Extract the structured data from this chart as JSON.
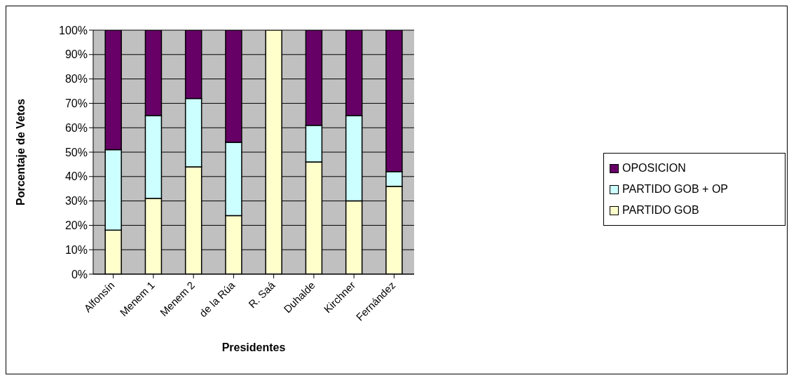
{
  "chart_data": {
    "type": "bar",
    "stacked": true,
    "xlabel": "Presidentes",
    "ylabel": "Porcentaje de Vetos",
    "categories": [
      "Alfonsín",
      "Menem 1",
      "Menem 2",
      "de la Rúa",
      "R. Saá",
      "Duhalde",
      "Kirchner",
      "Fernández"
    ],
    "series": [
      {
        "name": "PARTIDO GOB",
        "color": "#ffffcc",
        "values": [
          18,
          31,
          44,
          24,
          100,
          46,
          30,
          36
        ]
      },
      {
        "name": "PARTIDO GOB + OP",
        "color": "#ccffff",
        "values": [
          33,
          34,
          28,
          30,
          0,
          15,
          35,
          6
        ]
      },
      {
        "name": "OPOSICION",
        "color": "#660066",
        "values": [
          49,
          35,
          28,
          46,
          0,
          39,
          35,
          58
        ]
      }
    ],
    "ylim": [
      0,
      100
    ],
    "yticks": [
      {
        "value": 0,
        "label": "0%"
      },
      {
        "value": 10,
        "label": "10%"
      },
      {
        "value": 20,
        "label": "20%"
      },
      {
        "value": 30,
        "label": "30%"
      },
      {
        "value": 40,
        "label": "40%"
      },
      {
        "value": 50,
        "label": "50%"
      },
      {
        "value": 60,
        "label": "60%"
      },
      {
        "value": 70,
        "label": "70%"
      },
      {
        "value": 80,
        "label": "80%"
      },
      {
        "value": 90,
        "label": "90%"
      },
      {
        "value": 100,
        "label": "100%"
      }
    ],
    "grid": "y",
    "legend": "right"
  }
}
